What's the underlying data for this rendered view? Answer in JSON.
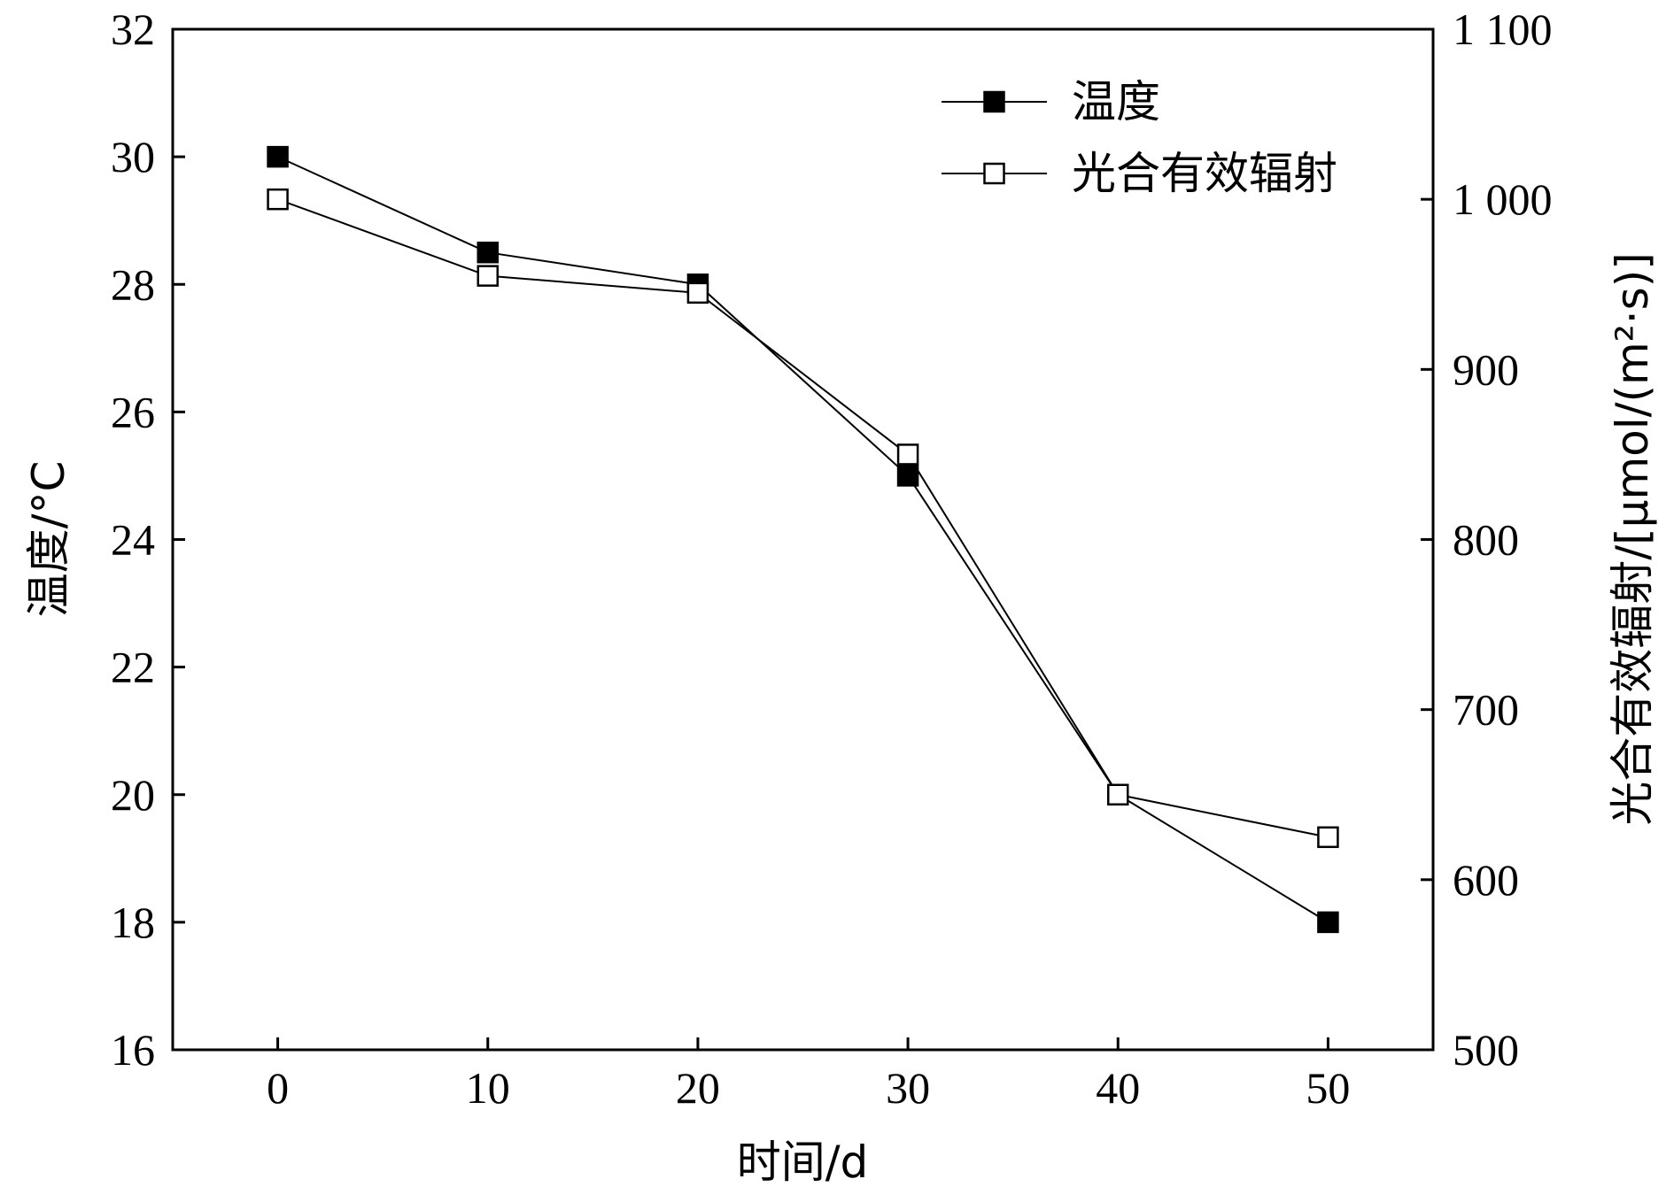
{
  "chart_data": {
    "type": "line",
    "x": [
      0,
      10,
      20,
      30,
      40,
      50
    ],
    "xlabel": "时间/d",
    "xlim": [
      -5,
      55
    ],
    "xticks": [
      "0",
      "10",
      "20",
      "30",
      "40",
      "50"
    ],
    "ylabel_left": "温度/°C",
    "ylim_left": [
      16,
      32
    ],
    "yticks_left": [
      "16",
      "18",
      "20",
      "22",
      "24",
      "26",
      "28",
      "30",
      "32"
    ],
    "ylabel_right": "光合有效辐射/[μmol/(m²·s)]",
    "ylim_right": [
      500,
      1100
    ],
    "yticks_right": [
      "500",
      "600",
      "700",
      "800",
      "900",
      "1 000",
      "1 100"
    ],
    "grid": false,
    "legend_position": "top-right",
    "series": [
      {
        "name": "温度",
        "axis": "left",
        "marker": "filled-square",
        "color": "#000000",
        "values": [
          30,
          28.5,
          28,
          25,
          20,
          18
        ]
      },
      {
        "name": "光合有效辐射",
        "axis": "right",
        "marker": "open-square",
        "color": "#000000",
        "values": [
          1000,
          955,
          945,
          850,
          650,
          625
        ]
      }
    ]
  }
}
